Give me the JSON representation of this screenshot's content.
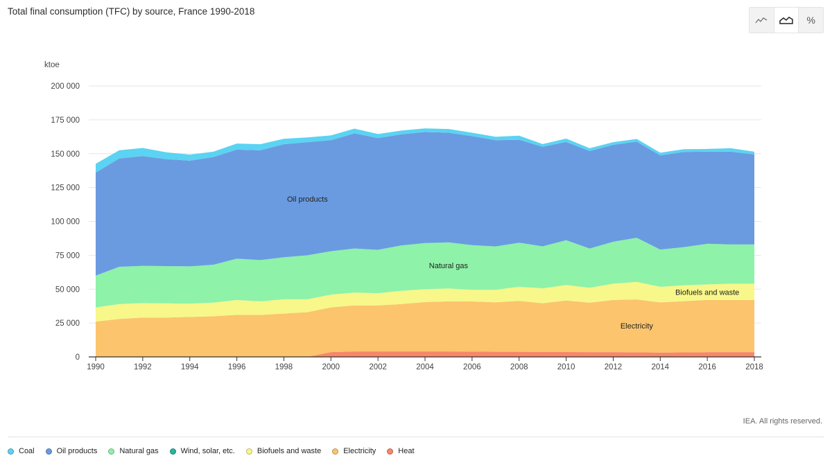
{
  "title": "Total final consumption (TFC) by source, France 1990-2018",
  "toggles": [
    {
      "name": "line",
      "symbol": "⟋"
    },
    {
      "name": "area",
      "symbol": "◠"
    },
    {
      "name": "percent",
      "symbol": "%"
    }
  ],
  "copyright": "IEA. All rights reserved.",
  "colors": {
    "coal": "#5bd3f2",
    "oil_products": "#6a9be0",
    "natural_gas": "#8ef2a8",
    "wind_solar": "#2ab59a",
    "biofuels_waste": "#f8f78a",
    "electricity": "#fbc46d",
    "heat": "#f8876a"
  },
  "legend": [
    {
      "label": "Coal",
      "color_key": "coal"
    },
    {
      "label": "Oil products",
      "color_key": "oil_products"
    },
    {
      "label": "Natural gas",
      "color_key": "natural_gas"
    },
    {
      "label": "Wind, solar, etc.",
      "color_key": "wind_solar"
    },
    {
      "label": "Biofuels and waste",
      "color_key": "biofuels_waste"
    },
    {
      "label": "Electricity",
      "color_key": "electricity"
    },
    {
      "label": "Heat",
      "color_key": "heat"
    }
  ],
  "chart_data": {
    "type": "area",
    "stacked": true,
    "title": "Total final consumption (TFC) by source, France 1990-2018",
    "ylabel": "ktoe",
    "xlabel": "",
    "ylim": [
      0,
      200000
    ],
    "yticks": [
      0,
      25000,
      50000,
      75000,
      100000,
      125000,
      150000,
      175000,
      200000
    ],
    "ytick_labels": [
      "0",
      "25 000",
      "50 000",
      "75 000",
      "100 000",
      "125 000",
      "150 000",
      "175 000",
      "200 000"
    ],
    "xticks": [
      1990,
      1992,
      1994,
      1996,
      1998,
      2000,
      2002,
      2004,
      2006,
      2008,
      2010,
      2012,
      2014,
      2016,
      2018
    ],
    "x": [
      1990,
      1991,
      1992,
      1993,
      1994,
      1995,
      1996,
      1997,
      1998,
      1999,
      2000,
      2001,
      2002,
      2003,
      2004,
      2005,
      2006,
      2007,
      2008,
      2009,
      2010,
      2011,
      2012,
      2013,
      2014,
      2015,
      2016,
      2017,
      2018
    ],
    "series": [
      {
        "name": "Heat",
        "color_key": "heat",
        "values": [
          0,
          0,
          0,
          0,
          0,
          0,
          0,
          0,
          0,
          0,
          3500,
          4000,
          4000,
          4000,
          4000,
          4000,
          3900,
          3800,
          3800,
          3600,
          3600,
          3500,
          3500,
          3400,
          3200,
          3300,
          3500,
          3500,
          3500
        ]
      },
      {
        "name": "Electricity",
        "color_key": "electricity",
        "label": "Electricity",
        "values": [
          26000,
          28000,
          29000,
          29000,
          29500,
          30000,
          31000,
          31000,
          32000,
          33000,
          33000,
          34000,
          34000,
          35000,
          36500,
          37000,
          37000,
          36500,
          37500,
          36000,
          38000,
          36500,
          38500,
          39000,
          37000,
          37800,
          38500,
          38500,
          38500
        ]
      },
      {
        "name": "Biofuels and waste",
        "color_key": "biofuels_waste",
        "label": "Biofuels and waste",
        "values": [
          10500,
          11000,
          10700,
          10500,
          9800,
          10000,
          11000,
          10000,
          10500,
          9500,
          9500,
          9500,
          9000,
          9800,
          9500,
          9500,
          8600,
          9200,
          10500,
          11000,
          11500,
          11000,
          12000,
          13000,
          11500,
          11700,
          11500,
          12000,
          12000
        ]
      },
      {
        "name": "Wind, solar, etc.",
        "color_key": "wind_solar",
        "values": [
          0,
          0,
          0,
          0,
          0,
          0,
          0,
          0,
          0,
          0,
          0,
          0,
          0,
          0,
          0,
          0,
          0,
          0,
          0,
          0,
          0,
          0,
          0,
          0,
          0,
          0,
          0,
          0,
          0
        ]
      },
      {
        "name": "Natural gas",
        "color_key": "natural_gas",
        "label": "Natural gas",
        "values": [
          23500,
          27500,
          27500,
          27500,
          27500,
          28000,
          30500,
          30500,
          31000,
          32500,
          32000,
          32500,
          32000,
          33500,
          34000,
          34000,
          33000,
          32000,
          32500,
          31000,
          33000,
          29000,
          31000,
          32500,
          27500,
          28200,
          30000,
          29000,
          29000
        ]
      },
      {
        "name": "Oil products",
        "color_key": "oil_products",
        "label": "Oil products",
        "values": [
          76000,
          80000,
          81000,
          79000,
          78000,
          79500,
          80500,
          81000,
          83500,
          83500,
          82000,
          85000,
          82500,
          82000,
          82000,
          81000,
          80500,
          78500,
          76000,
          73500,
          72500,
          72000,
          71500,
          71000,
          69500,
          70300,
          68000,
          68500,
          66500
        ]
      },
      {
        "name": "Coal",
        "color_key": "coal",
        "values": [
          6500,
          6000,
          6000,
          5000,
          4500,
          4000,
          4500,
          4500,
          4000,
          3500,
          3500,
          3500,
          3000,
          2800,
          2700,
          2700,
          2500,
          2500,
          3000,
          2000,
          2500,
          2000,
          2000,
          2000,
          2000,
          2000,
          2000,
          2500,
          2000
        ]
      }
    ]
  }
}
